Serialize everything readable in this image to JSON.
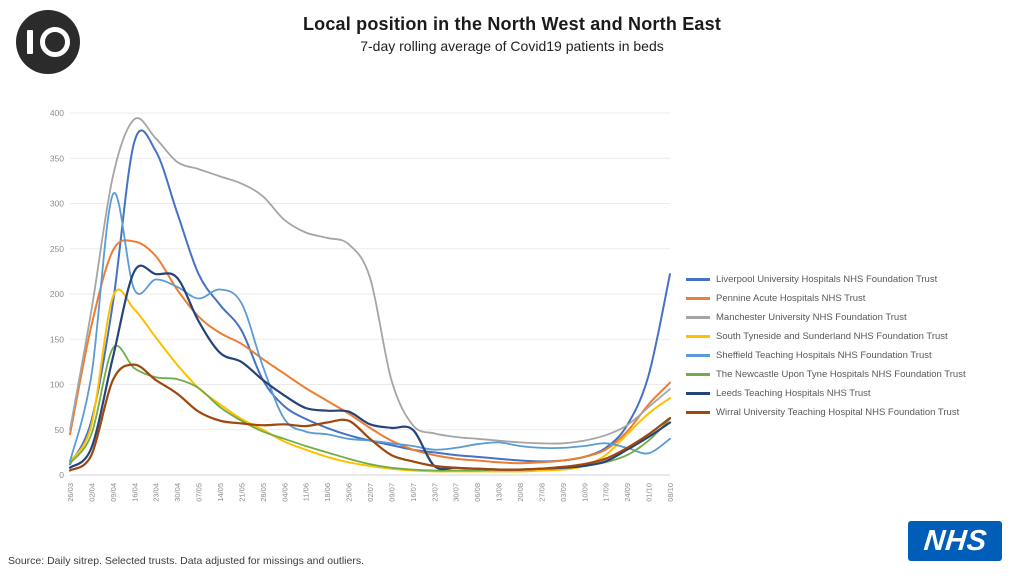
{
  "slide": {
    "badge_number": "10",
    "title": "Local position in the North West and North East",
    "subtitle": "7-day rolling average of Covid19 patients in beds",
    "source_note": "Source: Daily sitrep. Selected trusts. Data adjusted for missings and outliers.",
    "nhs_logo_text": "NHS",
    "nhs_blue": "#005EB8"
  },
  "chart_data": {
    "type": "line",
    "title": "Local position in the North West and North East",
    "subtitle": "7-day rolling average of Covid19 patients in beds",
    "xlabel": "",
    "ylabel": "",
    "ylim": [
      0,
      400
    ],
    "ytick_step": 50,
    "grid": "horizontal",
    "legend_position": "right",
    "categories": [
      "26/03",
      "02/04",
      "09/04",
      "16/04",
      "23/04",
      "30/04",
      "07/05",
      "14/05",
      "21/05",
      "28/05",
      "04/06",
      "11/06",
      "18/06",
      "25/06",
      "02/07",
      "09/07",
      "16/07",
      "23/07",
      "30/07",
      "06/08",
      "13/08",
      "20/08",
      "27/08",
      "03/09",
      "10/09",
      "17/09",
      "24/09",
      "01/10",
      "08/10"
    ],
    "series": [
      {
        "name": "Liverpool University Hospitals NHS Foundation Trust",
        "color": "#4472C4",
        "width": 2.0,
        "values": [
          12,
          60,
          190,
          368,
          358,
          290,
          222,
          188,
          160,
          105,
          76,
          62,
          52,
          44,
          38,
          33,
          28,
          25,
          22,
          20,
          18,
          16,
          15,
          16,
          20,
          30,
          55,
          110,
          222
        ]
      },
      {
        "name": "Pennine Acute Hospitals NHS Trust",
        "color": "#ED7D31",
        "width": 2.0,
        "values": [
          45,
          165,
          248,
          258,
          242,
          205,
          175,
          157,
          145,
          128,
          112,
          96,
          82,
          68,
          52,
          38,
          28,
          22,
          18,
          16,
          14,
          13,
          14,
          16,
          20,
          28,
          48,
          78,
          102
        ]
      },
      {
        "name": "Manchester University NHS Foundation Trust",
        "color": "#A5A5A5",
        "width": 1.8,
        "values": [
          50,
          182,
          330,
          393,
          372,
          346,
          338,
          330,
          322,
          308,
          282,
          268,
          262,
          255,
          218,
          105,
          55,
          46,
          42,
          40,
          38,
          36,
          35,
          35,
          38,
          44,
          55,
          75,
          95
        ]
      },
      {
        "name": "South Tyneside and Sunderland NHS Foundation Trust",
        "color": "#FFC000",
        "width": 2.0,
        "values": [
          15,
          55,
          197,
          183,
          152,
          122,
          96,
          78,
          62,
          50,
          37,
          28,
          20,
          14,
          10,
          7,
          5,
          4,
          4,
          4,
          4,
          4,
          5,
          6,
          10,
          22,
          45,
          68,
          85
        ]
      },
      {
        "name": "Sheffield Teaching Hospitals NHS Foundation Trust",
        "color": "#5B9BD5",
        "width": 1.8,
        "values": [
          15,
          110,
          310,
          205,
          216,
          208,
          195,
          205,
          190,
          120,
          62,
          48,
          45,
          40,
          38,
          35,
          32,
          28,
          30,
          34,
          36,
          32,
          30,
          30,
          32,
          35,
          30,
          24,
          40
        ]
      },
      {
        "name": "The Newcastle Upon Tyne Hospitals NHS Foundation Trust",
        "color": "#70AD47",
        "width": 1.8,
        "values": [
          13,
          45,
          140,
          118,
          108,
          106,
          96,
          75,
          60,
          48,
          40,
          32,
          25,
          18,
          12,
          8,
          6,
          5,
          5,
          5,
          6,
          6,
          7,
          8,
          10,
          14,
          22,
          38,
          62
        ]
      },
      {
        "name": "Leeds Teaching Hospitals NHS Trust",
        "color": "#264478",
        "width": 2.2,
        "values": [
          8,
          30,
          130,
          225,
          222,
          218,
          170,
          135,
          125,
          105,
          88,
          74,
          71,
          70,
          56,
          52,
          50,
          10,
          8,
          7,
          6,
          6,
          7,
          8,
          10,
          15,
          28,
          42,
          58
        ]
      },
      {
        "name": "Wirral University Teaching Hospital NHS Foundation Trust",
        "color": "#9E480E",
        "width": 2.2,
        "values": [
          5,
          22,
          105,
          122,
          105,
          90,
          70,
          60,
          57,
          55,
          56,
          54,
          58,
          60,
          40,
          22,
          15,
          10,
          8,
          7,
          6,
          6,
          7,
          9,
          12,
          18,
          30,
          45,
          63
        ]
      }
    ]
  }
}
